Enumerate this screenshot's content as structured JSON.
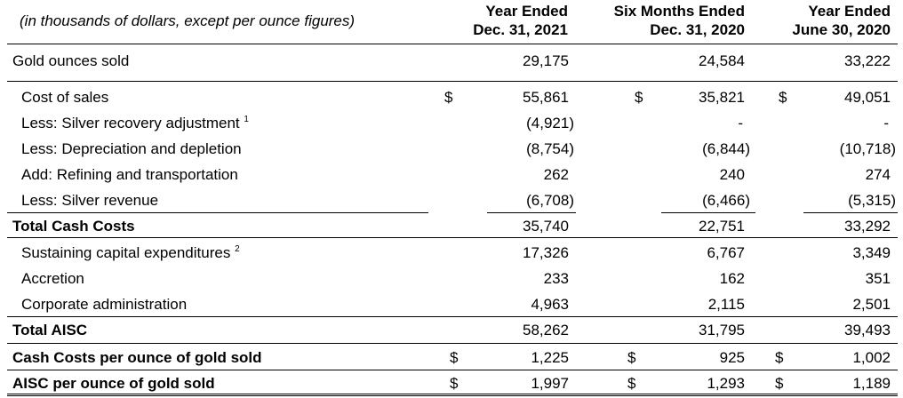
{
  "header": {
    "note": "(in thousands of dollars, except per ounce figures)",
    "col1": [
      "Year Ended",
      "Dec. 31, 2021"
    ],
    "col2": [
      "Six Months Ended",
      "Dec. 31, 2020"
    ],
    "col3": [
      "Year Ended",
      "June 30, 2020"
    ]
  },
  "currency_symbol": "$",
  "rows": {
    "gold_ounces": {
      "label": "Gold ounces sold",
      "v1": "29,175",
      "v2": "24,584",
      "v3": "33,222"
    },
    "cost_of_sales": {
      "label": "Cost of sales",
      "v1": "55,861",
      "v2": "35,821",
      "v3": "49,051"
    },
    "silver_recovery": {
      "label": "Less: Silver recovery adjustment",
      "note": "1",
      "v1": "(4,921)",
      "v2": "-",
      "v3": "-"
    },
    "depreciation": {
      "label": "Less: Depreciation and depletion",
      "v1": "(8,754)",
      "v2": "(6,844)",
      "v3": "(10,718)"
    },
    "refining": {
      "label": "Add: Refining and transportation",
      "v1": "262",
      "v2": "240",
      "v3": "274"
    },
    "silver_revenue": {
      "label": "Less: Silver revenue",
      "v1": "(6,708)",
      "v2": "(6,466)",
      "v3": "(5,315)"
    },
    "total_cash_costs": {
      "label": "Total Cash Costs",
      "v1": "35,740",
      "v2": "22,751",
      "v3": "33,292"
    },
    "sustaining_capex": {
      "label": "Sustaining capital expenditures",
      "note": "2",
      "v1": "17,326",
      "v2": "6,767",
      "v3": "3,349"
    },
    "accretion": {
      "label": "Accretion",
      "v1": "233",
      "v2": "162",
      "v3": "351"
    },
    "corporate_admin": {
      "label": "Corporate administration",
      "v1": "4,963",
      "v2": "2,115",
      "v3": "2,501"
    },
    "total_aisc": {
      "label": "Total AISC",
      "v1": "58,262",
      "v2": "31,795",
      "v3": "39,493"
    },
    "cash_costs_per_oz": {
      "label": "Cash Costs per ounce of gold sold",
      "v1": "1,225",
      "v2": "925",
      "v3": "1,002"
    },
    "aisc_per_oz": {
      "label": "AISC per ounce of gold sold",
      "v1": "1,997",
      "v2": "1,293",
      "v3": "1,189"
    }
  }
}
